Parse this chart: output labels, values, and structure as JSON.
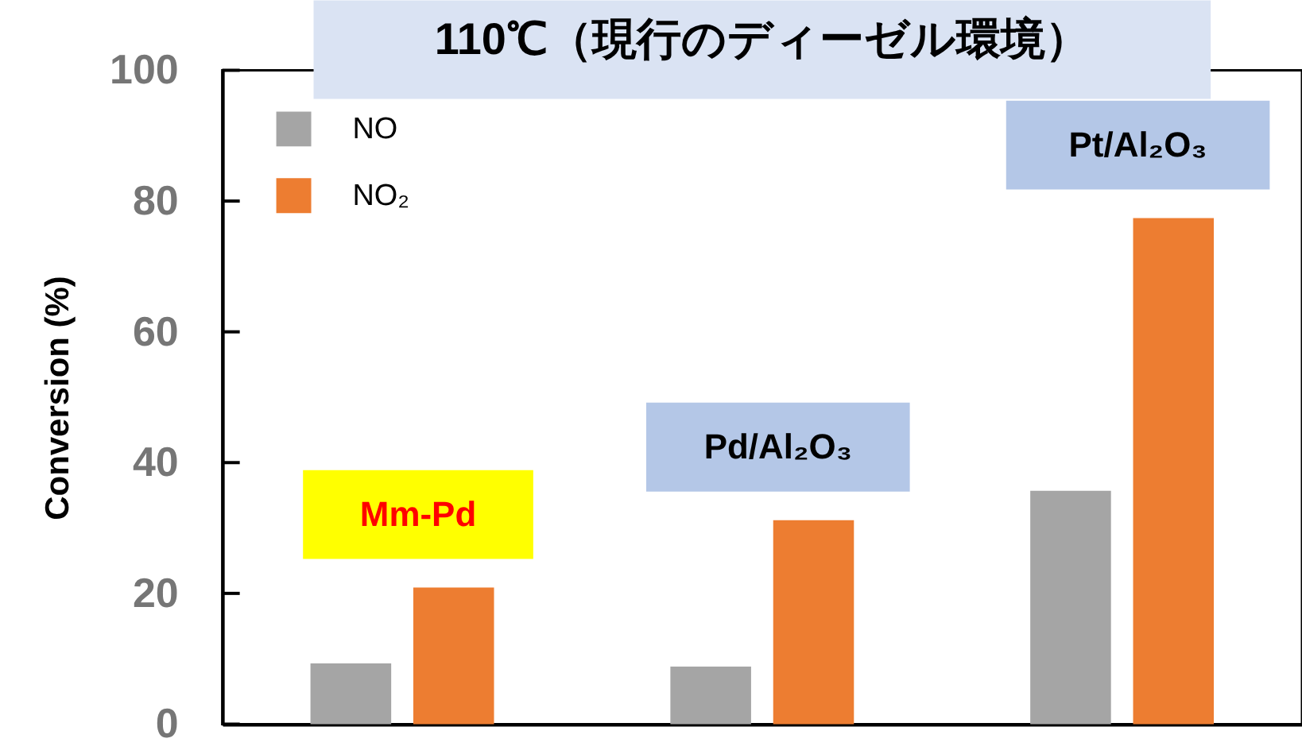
{
  "chart_data": {
    "type": "bar",
    "title": "110℃（現行のディーゼル環境）",
    "ylabel": "Conversion (%)",
    "categories": [
      "Mm-Pd",
      "Pd/Al₂O₃",
      "Pt/Al₂O₃"
    ],
    "series": [
      {
        "name": "NO",
        "color": "#a5a5a5",
        "values": [
          9.3,
          8.8,
          35.7
        ]
      },
      {
        "name": "NO₂",
        "color": "#ed7d31",
        "values": [
          20.9,
          31.2,
          77.4
        ]
      }
    ],
    "ylim": [
      0,
      100
    ],
    "yticks": [
      0,
      20,
      40,
      60,
      80,
      100
    ],
    "legend": "top left",
    "tick_labels": "y"
  }
}
